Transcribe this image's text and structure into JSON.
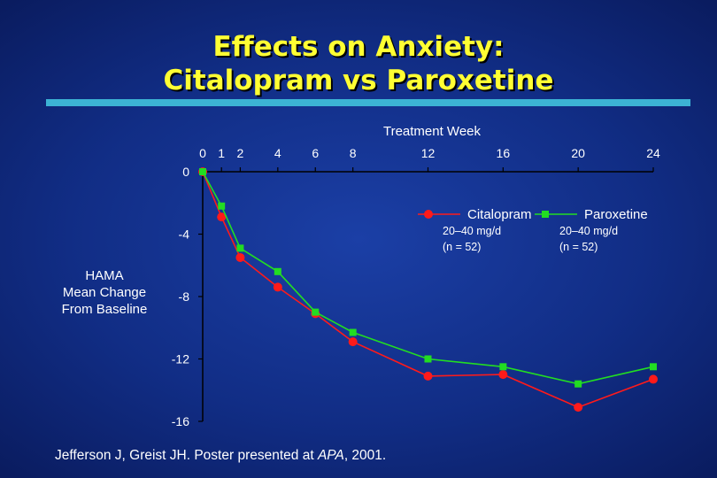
{
  "title_line1": "Effects on Anxiety:",
  "title_line2": "Citalopram vs Paroxetine",
  "citation_pre": "Jefferson J, Greist JH. Poster presented at ",
  "citation_em": "APA",
  "citation_post": ", 2001.",
  "colors": {
    "citalopram": "#ff1a1a",
    "paroxetine": "#22dd22",
    "title": "#ffff33",
    "rule": "#3cb3d4"
  },
  "chart_data": {
    "type": "line",
    "title": "",
    "xlabel": "Treatment Week",
    "ylabel": "HAMA\nMean Change\nFrom Baseline",
    "x_axis_position": "top",
    "xticks": [
      0,
      1,
      2,
      4,
      6,
      8,
      12,
      16,
      20,
      24
    ],
    "xlim": [
      0,
      24
    ],
    "yticks": [
      0,
      -4,
      -8,
      -12,
      -16
    ],
    "ylim": [
      -16,
      0
    ],
    "grid": false,
    "legend_position": "top-right",
    "series": [
      {
        "name": "Citalopram",
        "detail_line1": "20–40 mg/d",
        "detail_line2": "(n = 52)",
        "marker": "circle",
        "color": "#ff1a1a",
        "x": [
          0,
          1,
          2,
          4,
          6,
          8,
          12,
          16,
          20,
          24
        ],
        "y": [
          0,
          -2.9,
          -5.5,
          -7.4,
          -9.1,
          -10.9,
          -13.1,
          -13.0,
          -15.1,
          -13.3
        ]
      },
      {
        "name": "Paroxetine",
        "detail_line1": "20–40 mg/d",
        "detail_line2": "(n = 52)",
        "marker": "square",
        "color": "#22dd22",
        "x": [
          0,
          1,
          2,
          4,
          6,
          8,
          12,
          16,
          20,
          24
        ],
        "y": [
          0,
          -2.2,
          -4.9,
          -6.4,
          -9.0,
          -10.3,
          -12.0,
          -12.5,
          -13.6,
          -12.5
        ]
      }
    ]
  }
}
